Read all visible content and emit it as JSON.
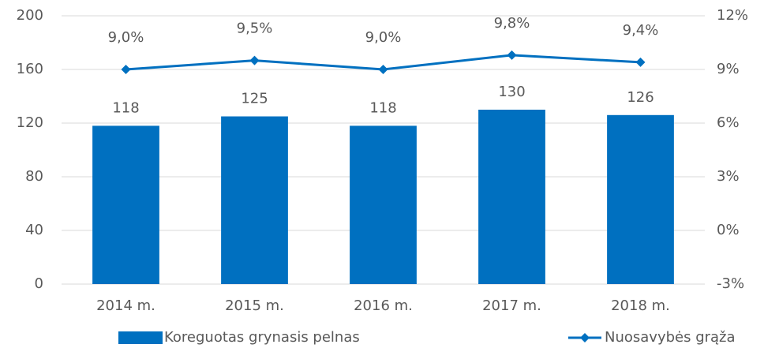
{
  "chart_data": {
    "type": "bar",
    "categories": [
      "2014 m.",
      "2015 m.",
      "2016 m.",
      "2017 m.",
      "2018 m."
    ],
    "series": [
      {
        "name": "Koreguotas grynasis pelnas",
        "type": "bar",
        "color": "#0070c0",
        "values": [
          118,
          125,
          118,
          130,
          126
        ]
      },
      {
        "name": "Nuosavybės grąža",
        "type": "line",
        "axis": "y2",
        "color": "#0070c0",
        "values": [
          9.0,
          9.5,
          9.0,
          9.8,
          9.4
        ],
        "value_labels": [
          "9,0%",
          "9,5%",
          "9,0%",
          "9,8%",
          "9,4%"
        ]
      }
    ],
    "ylim": [
      0,
      200
    ],
    "yticks": [
      0,
      40,
      80,
      120,
      160,
      200
    ],
    "y2lim": [
      -3,
      12
    ],
    "y2ticks": [
      {
        "value": -3,
        "label": "-3%"
      },
      {
        "value": 0,
        "label": "0%"
      },
      {
        "value": 3,
        "label": "3%"
      },
      {
        "value": 6,
        "label": "6%"
      },
      {
        "value": 9,
        "label": "9%"
      },
      {
        "value": 12,
        "label": "12%"
      }
    ],
    "grid": true,
    "legend": "bottom"
  }
}
